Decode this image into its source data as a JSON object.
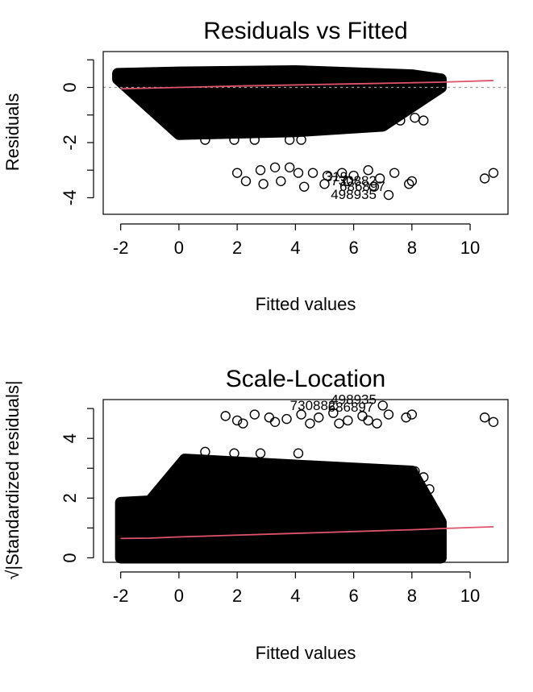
{
  "chart_data": [
    {
      "type": "scatter",
      "title": "Residuals vs Fitted",
      "xlabel": "Fitted values",
      "ylabel": "Residuals",
      "xlim": [
        -2.6,
        11.3
      ],
      "ylim": [
        -4.6,
        1.3
      ],
      "xticks": [
        -2,
        0,
        2,
        4,
        6,
        8,
        10
      ],
      "yticks": [
        -4,
        -2,
        0
      ],
      "yticks_minor": [
        -3,
        -1,
        1
      ],
      "reference_line": {
        "y": 0,
        "style": "dotted",
        "color": "#9a9a9a"
      },
      "smoother": {
        "color": "#df536b",
        "x": [
          -2,
          0,
          2,
          4,
          6,
          8,
          9,
          10.8
        ],
        "y": [
          -0.05,
          0.0,
          0.05,
          0.09,
          0.13,
          0.17,
          0.19,
          0.25
        ]
      },
      "dense_band": {
        "upper": [
          [
            -2.1,
            0.5
          ],
          [
            0,
            0.55
          ],
          [
            4,
            0.6
          ],
          [
            8,
            0.45
          ],
          [
            9,
            0.3
          ]
        ],
        "lower": [
          [
            -2.1,
            0.3
          ],
          [
            0,
            -1.7
          ],
          [
            4,
            -1.6
          ],
          [
            7,
            -1.4
          ],
          [
            9,
            0.0
          ]
        ]
      },
      "points": [
        [
          0.9,
          -1.9
        ],
        [
          1.9,
          -1.9
        ],
        [
          2.6,
          -1.9
        ],
        [
          3.8,
          -1.9
        ],
        [
          4.2,
          -1.9
        ],
        [
          7.6,
          -1.2
        ],
        [
          8.1,
          -1.1
        ],
        [
          8.4,
          -1.2
        ],
        [
          7.2,
          -0.7
        ],
        [
          8.0,
          -0.4
        ],
        [
          6.3,
          -1.1
        ],
        [
          6.9,
          -1.2
        ],
        [
          5.4,
          -1.3
        ],
        [
          5.9,
          -1.0
        ],
        [
          2.0,
          -3.1
        ],
        [
          2.8,
          -3.0
        ],
        [
          3.3,
          -2.9
        ],
        [
          3.8,
          -2.9
        ],
        [
          4.1,
          -3.1
        ],
        [
          4.6,
          -3.1
        ],
        [
          5.1,
          -3.2
        ],
        [
          5.6,
          -3.1
        ],
        [
          6.0,
          -3.2
        ],
        [
          6.5,
          -3.0
        ],
        [
          6.9,
          -3.3
        ],
        [
          7.4,
          -3.1
        ],
        [
          8.0,
          -3.4
        ],
        [
          10.5,
          -3.3
        ],
        [
          10.8,
          -3.1
        ],
        [
          2.3,
          -3.4
        ],
        [
          2.9,
          -3.5
        ],
        [
          3.5,
          -3.4
        ],
        [
          4.3,
          -3.6
        ],
        [
          5.0,
          -3.5
        ],
        [
          5.8,
          -3.4
        ],
        [
          6.7,
          -3.6
        ],
        [
          7.2,
          -3.9
        ],
        [
          7.9,
          -3.5
        ]
      ],
      "point_labels": [
        {
          "x": 6.0,
          "y": -3.55,
          "text": "730882"
        },
        {
          "x": 6.3,
          "y": -3.75,
          "text": "686897"
        },
        {
          "x": 6.0,
          "y": -4.05,
          "text": "498935"
        },
        {
          "x": 5.4,
          "y": -3.4,
          "text": "319"
        }
      ]
    },
    {
      "type": "scatter",
      "title": "Scale-Location",
      "xlabel": "Fitted values",
      "ylabel": "√|Standardized residuals|",
      "xlim": [
        -2.6,
        11.3
      ],
      "ylim": [
        -0.15,
        5.3
      ],
      "xticks": [
        -2,
        0,
        2,
        4,
        6,
        8,
        10
      ],
      "yticks": [
        0,
        2,
        4
      ],
      "yticks_minor": [
        1,
        3,
        5
      ],
      "smoother": {
        "color": "#df536b",
        "x": [
          -2,
          -1,
          0,
          2,
          4,
          6,
          8,
          9,
          10.8
        ],
        "y": [
          0.65,
          0.66,
          0.7,
          0.76,
          0.82,
          0.88,
          0.94,
          0.98,
          1.04
        ]
      },
      "dense_band": {
        "upper": [
          [
            -2.0,
            1.85
          ],
          [
            -1.0,
            1.9
          ],
          [
            0.2,
            3.3
          ],
          [
            4,
            3.1
          ],
          [
            8,
            2.9
          ],
          [
            9,
            1.2
          ]
        ],
        "lower": [
          [
            -2.0,
            0.0
          ],
          [
            9,
            0.0
          ]
        ]
      },
      "points": [
        [
          1.6,
          4.75
        ],
        [
          2.0,
          4.6
        ],
        [
          2.6,
          4.8
        ],
        [
          3.1,
          4.7
        ],
        [
          3.7,
          4.65
        ],
        [
          4.2,
          4.8
        ],
        [
          4.8,
          4.7
        ],
        [
          5.3,
          4.85
        ],
        [
          5.8,
          4.6
        ],
        [
          6.3,
          4.75
        ],
        [
          6.8,
          4.5
        ],
        [
          7.2,
          4.8
        ],
        [
          7.8,
          4.7
        ],
        [
          8.0,
          4.8
        ],
        [
          10.5,
          4.7
        ],
        [
          10.8,
          4.55
        ],
        [
          7.0,
          5.1
        ],
        [
          2.2,
          4.5
        ],
        [
          3.3,
          4.55
        ],
        [
          4.5,
          4.5
        ],
        [
          5.5,
          4.5
        ],
        [
          6.5,
          4.6
        ],
        [
          0.9,
          3.55
        ],
        [
          1.9,
          3.5
        ],
        [
          2.8,
          3.5
        ],
        [
          4.1,
          3.5
        ],
        [
          7.6,
          2.8
        ],
        [
          8.1,
          2.9
        ],
        [
          8.4,
          2.7
        ],
        [
          7.3,
          2.55
        ],
        [
          8.0,
          2.4
        ],
        [
          8.6,
          2.3
        ],
        [
          7.8,
          0.05
        ],
        [
          6.7,
          0.4
        ],
        [
          8.5,
          1.3
        ]
      ],
      "point_labels": [
        {
          "x": 6.0,
          "y": 5.15,
          "text": "498935"
        },
        {
          "x": 4.6,
          "y": 4.95,
          "text": "730882"
        },
        {
          "x": 5.9,
          "y": 4.9,
          "text": "686897"
        }
      ]
    }
  ]
}
